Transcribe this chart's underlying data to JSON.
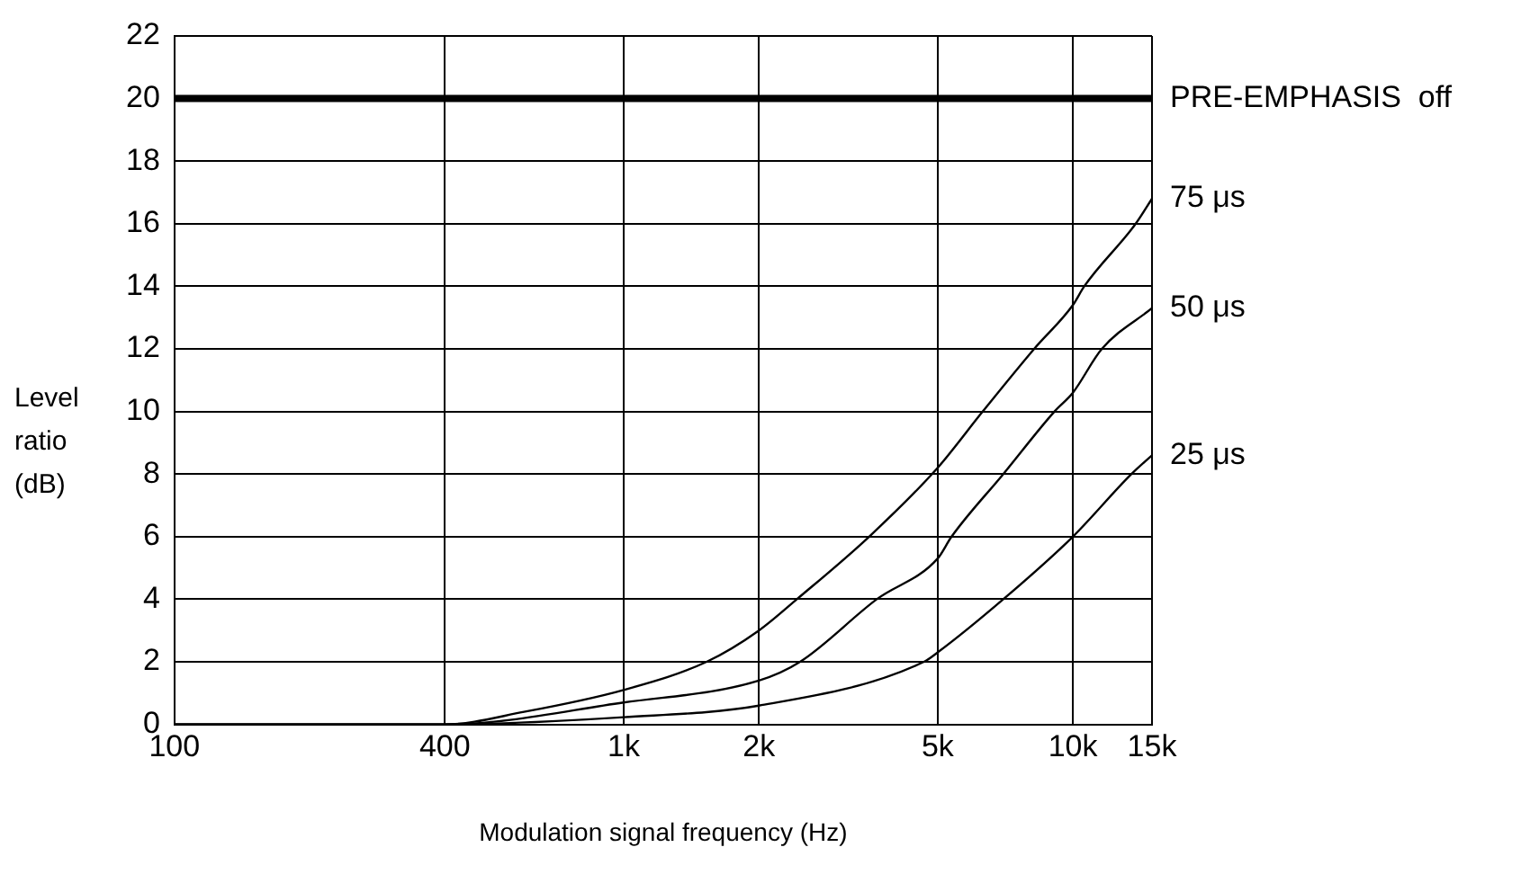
{
  "chart_data": {
    "type": "line",
    "xlabel": "Modulation signal frequency (Hz)",
    "ylabel": "Level ratio (dB)",
    "log": "x",
    "xlim": [
      100,
      15000
    ],
    "xticks": [
      {
        "value": 100,
        "label": "100"
      },
      {
        "value": 400,
        "label": "400"
      },
      {
        "value": 1000,
        "label": "1k"
      },
      {
        "value": 2000,
        "label": "2k"
      },
      {
        "value": 5000,
        "label": "5k"
      },
      {
        "value": 10000,
        "label": "10k"
      },
      {
        "value": 15000,
        "label": "15k"
      }
    ],
    "ylim": [
      0,
      22
    ],
    "yticks": [
      0,
      2,
      4,
      6,
      8,
      10,
      12,
      14,
      16,
      18,
      20,
      22
    ],
    "grid": true,
    "legend": false,
    "marker": "none",
    "line_style": "solid",
    "ref_lines": [
      {
        "axis": "y",
        "value": 20,
        "label": "PRE-EMPHASIS  off",
        "color": "#000000"
      }
    ],
    "series": [
      {
        "name": "75 μs",
        "color": "#000000",
        "x": [
          100,
          400,
          600,
          1000,
          1530,
          2000,
          2430,
          3520,
          5000,
          6300,
          8200,
          10000,
          10600,
          13800,
          15000
        ],
        "values": [
          0,
          0,
          0.4,
          1.1,
          2,
          3,
          4,
          6,
          8.2,
          10,
          12,
          13.4,
          14,
          16,
          16.8
        ]
      },
      {
        "name": "50 μs",
        "color": "#000000",
        "x": [
          100,
          400,
          1000,
          2000,
          2470,
          3660,
          5000,
          5370,
          7000,
          9100,
          10000,
          11600,
          15000
        ],
        "values": [
          0,
          0,
          0.7,
          1.4,
          2,
          4,
          5.3,
          6,
          8,
          10,
          10.6,
          12,
          13.3
        ]
      },
      {
        "name": "25 μs",
        "color": "#000000",
        "x": [
          100,
          400,
          1000,
          2000,
          4660,
          5000,
          7000,
          10000,
          13500,
          15000
        ],
        "values": [
          0,
          0,
          0.23,
          0.6,
          2,
          2.3,
          4,
          6,
          8,
          8.6
        ]
      }
    ]
  }
}
